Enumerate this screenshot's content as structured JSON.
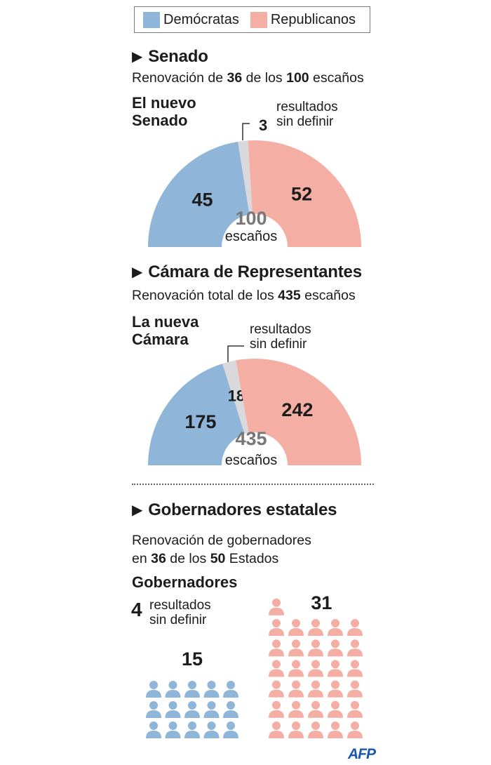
{
  "legend": {
    "dem_label": "Demócratas",
    "rep_label": "Republicanos"
  },
  "colors": {
    "dem": "#8fb6d9",
    "rep": "#f5aea3",
    "undecided": "#d9d9dd"
  },
  "senate": {
    "heading": "Senado",
    "sub_pre": "Renovación de ",
    "sub_num1": "36",
    "sub_mid": " de los ",
    "sub_num2": "100",
    "sub_post": " escaños",
    "chart_title_1": "El nuevo",
    "chart_title_2": "Senado",
    "note_num": "3",
    "note_line1": "resultados",
    "note_line2": "sin definir",
    "total_num": "100",
    "total_label": "escaños"
  },
  "house": {
    "heading": "Cámara de Representantes",
    "sub_pre": "Renovación total de los ",
    "sub_num": "435",
    "sub_post": " escaños",
    "chart_title_1": "La nueva",
    "chart_title_2": "Cámara",
    "note_line1": "resultados",
    "note_line2": "sin definir",
    "total_num": "435",
    "total_label": "escaños"
  },
  "governors": {
    "heading": "Gobernadores estatales",
    "sub_line1": "Renovación de gobernadores",
    "sub_pre": "en ",
    "sub_num1": "36",
    "sub_mid": " de los ",
    "sub_num2": "50",
    "sub_post": " Estados",
    "chart_title": "Gobernadores",
    "note_num": "4",
    "note_line1": "resultados",
    "note_line2": "sin definir"
  },
  "credit": "AFP",
  "chart_data": [
    {
      "type": "pie",
      "title": "El nuevo Senado",
      "categories": [
        "Demócratas",
        "sin definir",
        "Republicanos"
      ],
      "values": [
        45,
        3,
        52
      ],
      "total": 100
    },
    {
      "type": "pie",
      "title": "La nueva Cámara",
      "categories": [
        "Demócratas",
        "sin definir",
        "Republicanos"
      ],
      "values": [
        175,
        18,
        242
      ],
      "total": 435
    },
    {
      "type": "bar",
      "title": "Gobernadores",
      "categories": [
        "Demócratas",
        "sin definir",
        "Republicanos"
      ],
      "values": [
        15,
        4,
        31
      ]
    }
  ]
}
